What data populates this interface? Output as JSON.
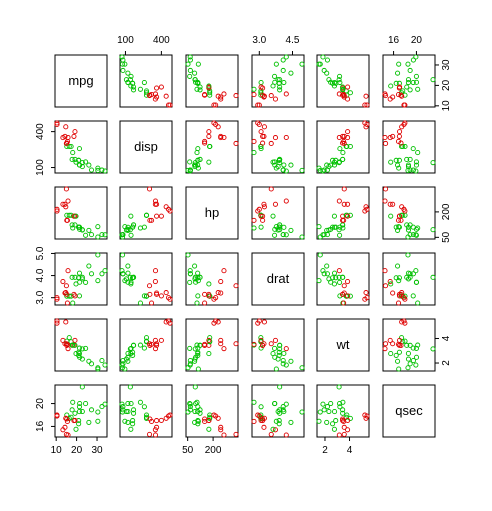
{
  "chart_data": {
    "type": "scatter",
    "title": "",
    "variables": [
      "mpg",
      "disp",
      "hp",
      "drat",
      "wt",
      "qsec"
    ],
    "ranges": {
      "mpg": [
        10.4,
        33.9
      ],
      "disp": [
        71.1,
        472
      ],
      "hp": [
        52,
        335
      ],
      "drat": [
        2.76,
        4.93
      ],
      "wt": [
        1.513,
        5.424
      ],
      "qsec": [
        14.5,
        22.9
      ]
    },
    "axes": {
      "top": [
        {
          "col": 1,
          "ticks": [
            {
              "value": 100,
              "label": "100"
            },
            {
              "value": 400,
              "label": "400"
            }
          ]
        },
        {
          "col": 3,
          "ticks": [
            {
              "value": 3.0,
              "label": "3.0"
            },
            {
              "value": 4.5,
              "label": "4.5"
            }
          ]
        },
        {
          "col": 5,
          "ticks": [
            {
              "value": 16,
              "label": "16"
            },
            {
              "value": 20,
              "label": "20"
            }
          ]
        }
      ],
      "bottom": [
        {
          "col": 0,
          "ticks": [
            {
              "value": 10,
              "label": "10"
            },
            {
              "value": 20,
              "label": "20"
            },
            {
              "value": 30,
              "label": "30"
            }
          ]
        },
        {
          "col": 2,
          "ticks": [
            {
              "value": 50,
              "label": "50"
            },
            {
              "value": 200,
              "label": "200"
            }
          ]
        },
        {
          "col": 4,
          "ticks": [
            {
              "value": 2,
              "label": "2"
            },
            {
              "value": 4,
              "label": "4"
            }
          ]
        }
      ],
      "left": [
        {
          "row": 1,
          "ticks": [
            {
              "value": 100,
              "label": "100"
            },
            {
              "value": 400,
              "label": "400"
            }
          ]
        },
        {
          "row": 3,
          "ticks": [
            {
              "value": 3.0,
              "label": "3.0"
            },
            {
              "value": 4.0,
              "label": "4.0"
            },
            {
              "value": 5.0,
              "label": "5.0"
            }
          ]
        },
        {
          "row": 5,
          "ticks": [
            {
              "value": 16,
              "label": "16"
            },
            {
              "value": 20,
              "label": "20"
            }
          ]
        }
      ],
      "right": [
        {
          "row": 0,
          "ticks": [
            {
              "value": 10,
              "label": "10"
            },
            {
              "value": 20,
              "label": "20"
            },
            {
              "value": 30,
              "label": "30"
            }
          ]
        },
        {
          "row": 2,
          "ticks": [
            {
              "value": 50,
              "label": "50"
            },
            {
              "value": 200,
              "label": "200"
            }
          ]
        },
        {
          "row": 4,
          "ticks": [
            {
              "value": 2,
              "label": "2"
            },
            {
              "value": 4,
              "label": "4"
            }
          ]
        }
      ]
    },
    "colors": {
      "group_a": "#df0000",
      "group_b": "#00c000"
    },
    "points": [
      {
        "mpg": 21.0,
        "disp": 160.0,
        "hp": 110,
        "drat": 3.9,
        "wt": 2.62,
        "qsec": 16.46,
        "group": "b"
      },
      {
        "mpg": 21.0,
        "disp": 160.0,
        "hp": 110,
        "drat": 3.9,
        "wt": 2.875,
        "qsec": 17.02,
        "group": "b"
      },
      {
        "mpg": 22.8,
        "disp": 108.0,
        "hp": 93,
        "drat": 3.85,
        "wt": 2.32,
        "qsec": 18.61,
        "group": "b"
      },
      {
        "mpg": 21.4,
        "disp": 258.0,
        "hp": 110,
        "drat": 3.08,
        "wt": 3.215,
        "qsec": 19.44,
        "group": "b"
      },
      {
        "mpg": 18.7,
        "disp": 360.0,
        "hp": 175,
        "drat": 3.15,
        "wt": 3.44,
        "qsec": 17.02,
        "group": "a"
      },
      {
        "mpg": 18.1,
        "disp": 225.0,
        "hp": 105,
        "drat": 2.76,
        "wt": 3.46,
        "qsec": 20.22,
        "group": "b"
      },
      {
        "mpg": 14.3,
        "disp": 360.0,
        "hp": 245,
        "drat": 3.21,
        "wt": 3.57,
        "qsec": 15.84,
        "group": "a"
      },
      {
        "mpg": 24.4,
        "disp": 146.7,
        "hp": 62,
        "drat": 3.69,
        "wt": 3.19,
        "qsec": 20.0,
        "group": "b"
      },
      {
        "mpg": 22.8,
        "disp": 140.8,
        "hp": 95,
        "drat": 3.92,
        "wt": 3.15,
        "qsec": 22.9,
        "group": "b"
      },
      {
        "mpg": 19.2,
        "disp": 167.6,
        "hp": 123,
        "drat": 3.92,
        "wt": 3.44,
        "qsec": 18.3,
        "group": "b"
      },
      {
        "mpg": 17.8,
        "disp": 167.6,
        "hp": 123,
        "drat": 3.92,
        "wt": 3.44,
        "qsec": 18.9,
        "group": "b"
      },
      {
        "mpg": 16.4,
        "disp": 275.8,
        "hp": 180,
        "drat": 3.07,
        "wt": 4.07,
        "qsec": 17.4,
        "group": "b"
      },
      {
        "mpg": 17.3,
        "disp": 275.8,
        "hp": 180,
        "drat": 3.07,
        "wt": 3.73,
        "qsec": 17.6,
        "group": "b"
      },
      {
        "mpg": 15.2,
        "disp": 275.8,
        "hp": 180,
        "drat": 3.07,
        "wt": 3.78,
        "qsec": 18.0,
        "group": "b"
      },
      {
        "mpg": 10.4,
        "disp": 472.0,
        "hp": 205,
        "drat": 2.93,
        "wt": 5.25,
        "qsec": 17.98,
        "group": "a"
      },
      {
        "mpg": 10.4,
        "disp": 460.0,
        "hp": 215,
        "drat": 3.0,
        "wt": 5.424,
        "qsec": 17.82,
        "group": "a"
      },
      {
        "mpg": 14.7,
        "disp": 440.0,
        "hp": 230,
        "drat": 3.23,
        "wt": 5.345,
        "qsec": 17.42,
        "group": "a"
      },
      {
        "mpg": 32.4,
        "disp": 78.7,
        "hp": 66,
        "drat": 4.08,
        "wt": 2.2,
        "qsec": 19.47,
        "group": "b"
      },
      {
        "mpg": 30.4,
        "disp": 75.7,
        "hp": 52,
        "drat": 4.93,
        "wt": 1.615,
        "qsec": 18.52,
        "group": "b"
      },
      {
        "mpg": 33.9,
        "disp": 71.1,
        "hp": 65,
        "drat": 4.22,
        "wt": 1.835,
        "qsec": 19.9,
        "group": "b"
      },
      {
        "mpg": 21.5,
        "disp": 120.1,
        "hp": 97,
        "drat": 3.7,
        "wt": 2.465,
        "qsec": 20.01,
        "group": "b"
      },
      {
        "mpg": 15.5,
        "disp": 318.0,
        "hp": 150,
        "drat": 2.76,
        "wt": 3.52,
        "qsec": 16.87,
        "group": "a"
      },
      {
        "mpg": 15.2,
        "disp": 304.0,
        "hp": 150,
        "drat": 3.15,
        "wt": 3.435,
        "qsec": 17.3,
        "group": "a"
      },
      {
        "mpg": 13.3,
        "disp": 350.0,
        "hp": 245,
        "drat": 3.73,
        "wt": 3.84,
        "qsec": 15.41,
        "group": "a"
      },
      {
        "mpg": 19.2,
        "disp": 400.0,
        "hp": 175,
        "drat": 3.08,
        "wt": 3.845,
        "qsec": 17.05,
        "group": "a"
      },
      {
        "mpg": 27.3,
        "disp": 79.0,
        "hp": 66,
        "drat": 4.08,
        "wt": 1.935,
        "qsec": 18.9,
        "group": "b"
      },
      {
        "mpg": 26.0,
        "disp": 120.3,
        "hp": 91,
        "drat": 4.43,
        "wt": 2.14,
        "qsec": 16.7,
        "group": "b"
      },
      {
        "mpg": 30.4,
        "disp": 95.1,
        "hp": 113,
        "drat": 3.77,
        "wt": 1.513,
        "qsec": 16.9,
        "group": "b"
      },
      {
        "mpg": 15.8,
        "disp": 351.0,
        "hp": 264,
        "drat": 4.22,
        "wt": 3.17,
        "qsec": 14.5,
        "group": "a"
      },
      {
        "mpg": 19.7,
        "disp": 145.0,
        "hp": 175,
        "drat": 3.62,
        "wt": 2.77,
        "qsec": 15.5,
        "group": "b"
      },
      {
        "mpg": 15.0,
        "disp": 301.0,
        "hp": 335,
        "drat": 3.54,
        "wt": 3.57,
        "qsec": 14.6,
        "group": "a"
      },
      {
        "mpg": 21.4,
        "disp": 121.0,
        "hp": 109,
        "drat": 4.11,
        "wt": 2.78,
        "qsec": 18.6,
        "group": "b"
      }
    ]
  }
}
